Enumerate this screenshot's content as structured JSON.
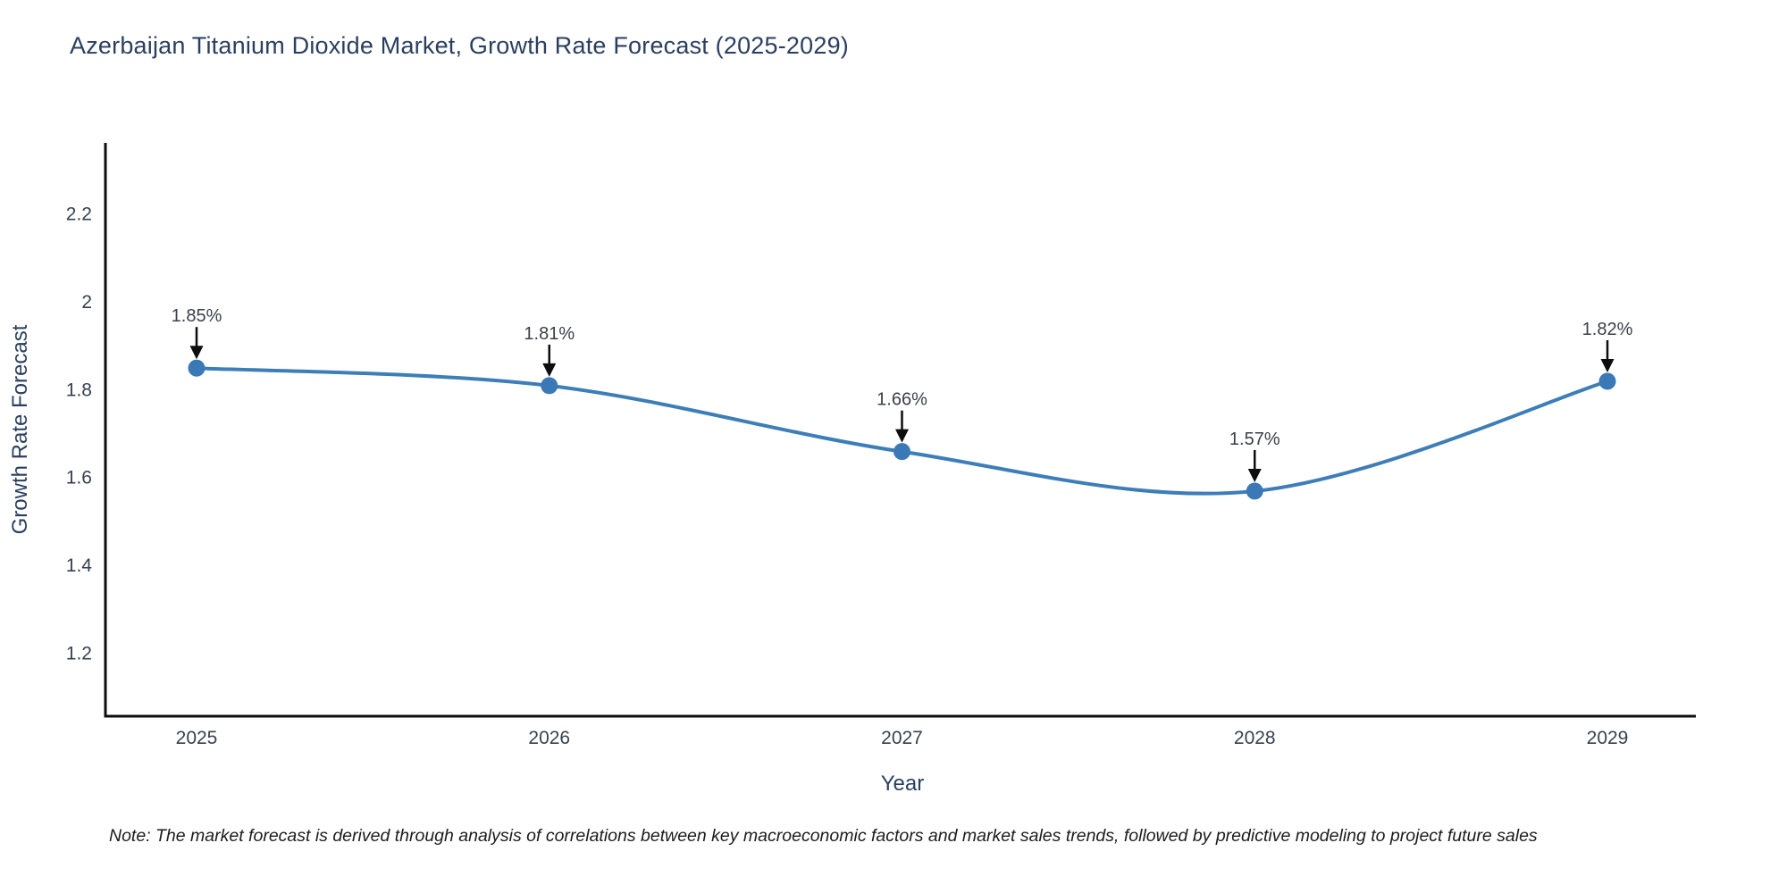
{
  "title": "Azerbaijan Titanium Dioxide Market, Growth Rate Forecast (2025-2029)",
  "note": "Note: The market forecast is derived through analysis of correlations between key macroeconomic factors and market sales trends, followed by predictive modeling to project future sales",
  "chart_data": {
    "type": "line",
    "title": "Azerbaijan Titanium Dioxide Market, Growth Rate Forecast (2025-2029)",
    "x": [
      2025,
      2026,
      2027,
      2028,
      2029
    ],
    "series": [
      {
        "name": "Growth Rate Forecast",
        "values": [
          1.85,
          1.81,
          1.66,
          1.57,
          1.82
        ]
      }
    ],
    "point_labels": [
      "1.85%",
      "1.81%",
      "1.66%",
      "1.57%",
      "1.82%"
    ],
    "xlabel": "Year",
    "ylabel": "Growth Rate Forecast",
    "xtick_labels": [
      "2025",
      "2026",
      "2027",
      "2028",
      "2029"
    ],
    "yticks": [
      1.2,
      1.4,
      1.6,
      1.8,
      2,
      2.2
    ],
    "ytick_labels": [
      "1.2",
      "1.4",
      "1.6",
      "1.8",
      "2",
      "2.2"
    ],
    "ylim": [
      1.06,
      2.36
    ],
    "grid": false,
    "legend_position": "none",
    "line_shape": "spline",
    "line_color": "#3d7db8",
    "marker_color": "#3a79b5",
    "arrow_color": "#0d0d0d",
    "axis_color": "#0d0d0d"
  }
}
